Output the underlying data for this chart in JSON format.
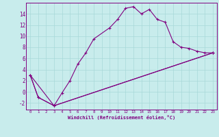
{
  "xlabel": "Windchill (Refroidissement éolien,°C)",
  "bg_color": "#c8ecec",
  "line_color": "#800080",
  "grid_color": "#a8d8d8",
  "xlim": [
    -0.5,
    23.5
  ],
  "ylim": [
    -3.2,
    16.0
  ],
  "yticks": [
    -2,
    0,
    2,
    4,
    6,
    8,
    10,
    12,
    14
  ],
  "xticks": [
    0,
    1,
    2,
    3,
    4,
    5,
    6,
    7,
    8,
    9,
    10,
    11,
    12,
    13,
    14,
    15,
    16,
    17,
    18,
    19,
    20,
    21,
    22,
    23
  ],
  "series1_x": [
    0,
    1,
    3,
    4,
    5,
    6,
    7,
    8,
    10,
    11,
    12,
    13,
    14,
    15,
    16,
    17,
    18,
    19,
    20,
    21,
    22,
    23
  ],
  "series1_y": [
    3.0,
    -1.0,
    -2.5,
    -0.2,
    2.0,
    5.0,
    7.0,
    9.5,
    11.5,
    13.0,
    15.0,
    15.3,
    14.0,
    14.8,
    13.0,
    12.5,
    9.0,
    8.0,
    7.8,
    7.3,
    7.0,
    7.0
  ],
  "series2_x": [
    0,
    1,
    3,
    23
  ],
  "series2_y": [
    3.0,
    -1.0,
    -2.5,
    7.0
  ],
  "series3_x": [
    0,
    3,
    23
  ],
  "series3_y": [
    3.0,
    -2.5,
    7.0
  ]
}
